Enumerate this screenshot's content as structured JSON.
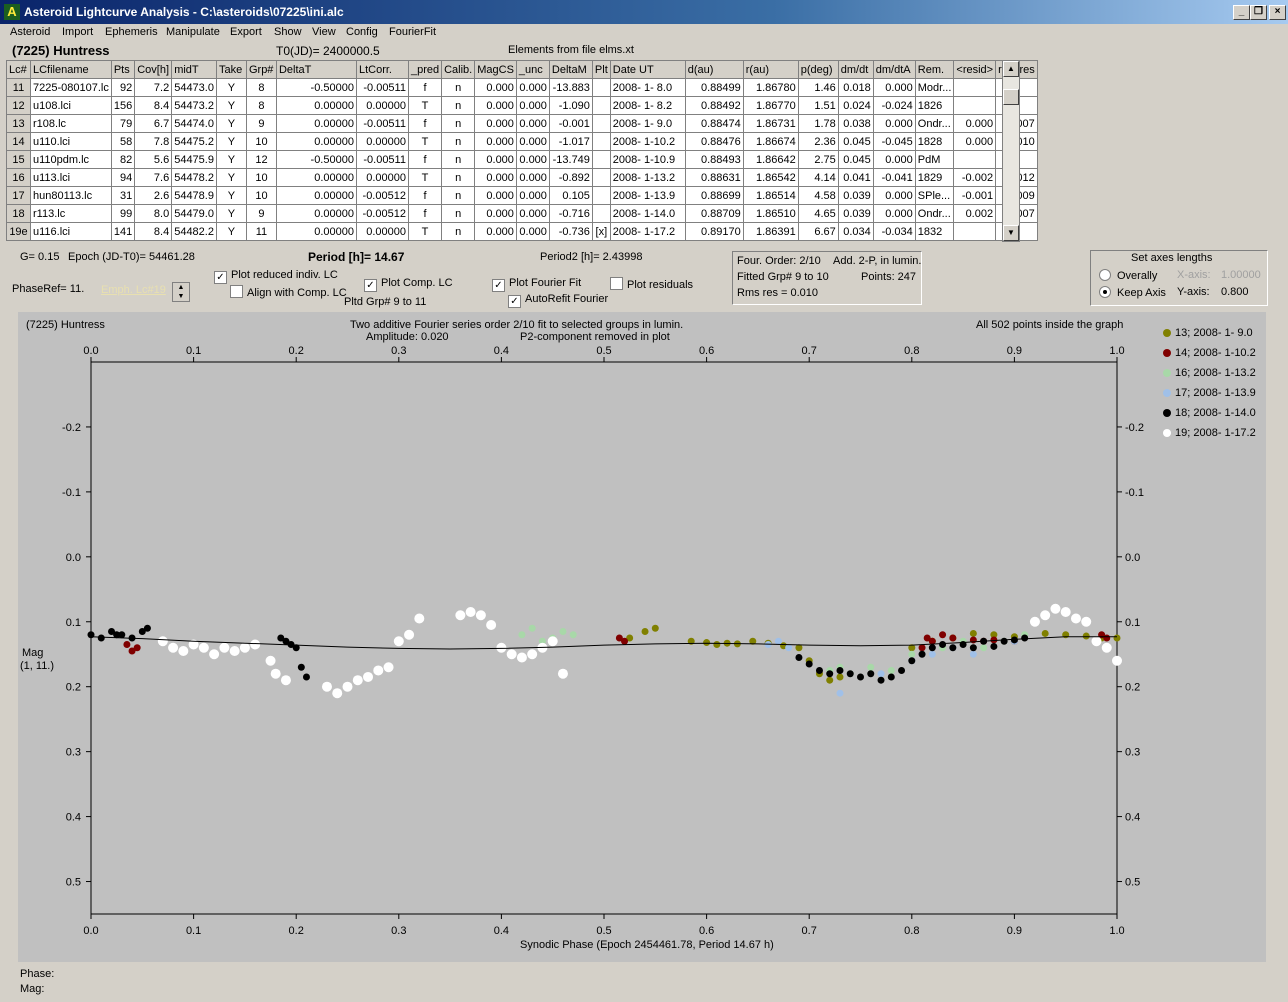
{
  "window": {
    "title": "Asteroid Lightcurve Analysis - C:\\asteroids\\07225\\ini.alc",
    "app_icon": "A"
  },
  "menu": [
    "Asteroid",
    "Import",
    "Ephemeris",
    "Manipulate",
    "Export",
    "Show",
    "View",
    "Config",
    "FourierFit"
  ],
  "header": {
    "asteroid": "(7225) Huntress",
    "t0": "T0(JD)= 2400000.5",
    "elements": "Elements from file elms.xt"
  },
  "table": {
    "columns": [
      "Lc#",
      "LCfilename",
      "Pts",
      "Cov[h]",
      "midT",
      "Take",
      "Grp#",
      "DeltaT",
      "LtCorr.",
      "_pred",
      "Calib.",
      "MagCS",
      "_unc",
      "DeltaM",
      "Plt",
      "Date UT",
      "d(au)",
      "r(au)",
      "p(deg)",
      "dm/dt",
      "dm/dtA",
      "Rem.",
      "<resid>",
      "rms res"
    ],
    "rows": [
      [
        "11",
        "7225-080107.lc",
        "92",
        "7.2",
        "54473.0",
        "Y",
        "8",
        "-0.50000",
        "-0.00511",
        "f",
        "n",
        "0.000",
        "0.000",
        "-13.883",
        "",
        "2008- 1- 8.0",
        "0.88499",
        "1.86780",
        "1.46",
        "0.018",
        "0.000",
        "Modr...",
        "",
        ""
      ],
      [
        "12",
        "u108.lci",
        "156",
        "8.4",
        "54473.2",
        "Y",
        "8",
        "0.00000",
        "0.00000",
        "T",
        "n",
        "0.000",
        "0.000",
        "-1.090",
        "",
        "2008- 1- 8.2",
        "0.88492",
        "1.86770",
        "1.51",
        "0.024",
        "-0.024",
        "1826",
        "",
        ""
      ],
      [
        "13",
        "r108.lc",
        "79",
        "6.7",
        "54474.0",
        "Y",
        "9",
        "0.00000",
        "-0.00511",
        "f",
        "n",
        "0.000",
        "0.000",
        "-0.001",
        "",
        "2008- 1- 9.0",
        "0.88474",
        "1.86731",
        "1.78",
        "0.038",
        "0.000",
        "Ondr...",
        "0.000",
        "0.007"
      ],
      [
        "14",
        "u110.lci",
        "58",
        "7.8",
        "54475.2",
        "Y",
        "10",
        "0.00000",
        "0.00000",
        "T",
        "n",
        "0.000",
        "0.000",
        "-1.017",
        "",
        "2008- 1-10.2",
        "0.88476",
        "1.86674",
        "2.36",
        "0.045",
        "-0.045",
        "1828",
        "0.000",
        "0.010"
      ],
      [
        "15",
        "u110pdm.lc",
        "82",
        "5.6",
        "54475.9",
        "Y",
        "12",
        "-0.50000",
        "-0.00511",
        "f",
        "n",
        "0.000",
        "0.000",
        "-13.749",
        "",
        "2008- 1-10.9",
        "0.88493",
        "1.86642",
        "2.75",
        "0.045",
        "0.000",
        "PdM",
        "",
        ""
      ],
      [
        "16",
        "u113.lci",
        "94",
        "7.6",
        "54478.2",
        "Y",
        "10",
        "0.00000",
        "0.00000",
        "T",
        "n",
        "0.000",
        "0.000",
        "-0.892",
        "",
        "2008- 1-13.2",
        "0.88631",
        "1.86542",
        "4.14",
        "0.041",
        "-0.041",
        "1829",
        "-0.002",
        "0.012"
      ],
      [
        "17",
        "hun80113.lc",
        "31",
        "2.6",
        "54478.9",
        "Y",
        "10",
        "0.00000",
        "-0.00512",
        "f",
        "n",
        "0.000",
        "0.000",
        "0.105",
        "",
        "2008- 1-13.9",
        "0.88699",
        "1.86514",
        "4.58",
        "0.039",
        "0.000",
        "SPle...",
        "-0.001",
        "0.009"
      ],
      [
        "18",
        "r113.lc",
        "99",
        "8.0",
        "54479.0",
        "Y",
        "9",
        "0.00000",
        "-0.00512",
        "f",
        "n",
        "0.000",
        "0.000",
        "-0.716",
        "",
        "2008- 1-14.0",
        "0.88709",
        "1.86510",
        "4.65",
        "0.039",
        "0.000",
        "Ondr...",
        "0.002",
        "0.007"
      ],
      [
        "19e",
        "u116.lci",
        "141",
        "8.4",
        "54482.2",
        "Y",
        "11",
        "0.00000",
        "0.00000",
        "T",
        "n",
        "0.000",
        "0.000",
        "-0.736",
        "[x]",
        "2008- 1-17.2",
        "0.89170",
        "1.86391",
        "6.67",
        "0.034",
        "-0.034",
        "1832",
        "",
        ""
      ]
    ]
  },
  "controls": {
    "g": "G= 0.15",
    "epoch": "Epoch (JD-T0)= 54461.28",
    "period": "Period [h]= 14.67",
    "period2": "Period2 [h]= 2.43998",
    "phaseref": "PhaseRef= 11.",
    "emph": "Emph. Lc#19",
    "plot_reduced": "Plot reduced indiv. LC",
    "align": "Align with Comp. LC",
    "plot_comp": "Plot Comp. LC",
    "pltd_grp": "Pltd Grp#  9  to   11",
    "plot_fourier": "Plot Fourier Fit",
    "autorefit": "AutoRefit Fourier",
    "plot_resid": "Plot residuals",
    "four_order": "Four. Order:  2/10",
    "add": "Add. 2-P, in lumin.",
    "fitted": "Fitted Grp# 9 to 10",
    "points": "Points: 247",
    "rms": "Rms res      = 0.010",
    "axes_title": "Set axes lengths",
    "overally": "Overally",
    "keepaxis": "Keep Axis",
    "xaxis_label": "X-axis:",
    "xaxis_val": "1.00000",
    "yaxis_label": "Y-axis:",
    "yaxis_val": "0.800"
  },
  "graph_text": {
    "name": "(7225) Huntress",
    "line1": "Two additive Fourier series order 2/10 fit to selected groups in lumin.",
    "line2": "Amplitude: 0.020",
    "line3": "P2-component removed in plot",
    "inside": "All 502 points inside the graph",
    "ylabel1": "Mag",
    "ylabel2": "(1, 11.)"
  },
  "status": {
    "phase": "Phase:",
    "mag": "Mag:"
  },
  "chart_data": {
    "type": "scatter",
    "xlabel": "Synodic Phase (Epoch 2454461.78, Period 14.67 h)",
    "ylabel": "Mag",
    "xlim": [
      0.0,
      1.0
    ],
    "ylim": [
      -0.3,
      0.55
    ],
    "y_inverted": true,
    "xticks": [
      "0.0",
      "0.1",
      "0.2",
      "0.3",
      "0.4",
      "0.5",
      "0.6",
      "0.7",
      "0.8",
      "0.9",
      "1.0"
    ],
    "yticks": [
      "-0.2",
      "-0.1",
      "0.0",
      "0.1",
      "0.2",
      "0.3",
      "0.4",
      "0.5"
    ],
    "legend_position": "right",
    "fit_curve": {
      "x": [
        0,
        0.05,
        0.1,
        0.15,
        0.2,
        0.25,
        0.3,
        0.35,
        0.4,
        0.45,
        0.5,
        0.55,
        0.6,
        0.65,
        0.7,
        0.75,
        0.8,
        0.85,
        0.9,
        0.95,
        1.0
      ],
      "y": [
        0.123,
        0.126,
        0.13,
        0.133,
        0.136,
        0.139,
        0.141,
        0.142,
        0.141,
        0.139,
        0.136,
        0.134,
        0.133,
        0.134,
        0.136,
        0.137,
        0.136,
        0.132,
        0.127,
        0.123,
        0.123
      ]
    },
    "series": [
      {
        "name": "13; 2008- 1- 9.0",
        "color": "#808000",
        "points": [
          [
            0.525,
            0.125
          ],
          [
            0.54,
            0.115
          ],
          [
            0.55,
            0.11
          ],
          [
            0.585,
            0.13
          ],
          [
            0.6,
            0.132
          ],
          [
            0.61,
            0.135
          ],
          [
            0.62,
            0.133
          ],
          [
            0.63,
            0.134
          ],
          [
            0.645,
            0.13
          ],
          [
            0.66,
            0.133
          ],
          [
            0.675,
            0.137
          ],
          [
            0.69,
            0.14
          ],
          [
            0.7,
            0.16
          ],
          [
            0.71,
            0.18
          ],
          [
            0.72,
            0.19
          ],
          [
            0.73,
            0.185
          ],
          [
            0.8,
            0.14
          ],
          [
            0.82,
            0.13
          ],
          [
            0.84,
            0.125
          ],
          [
            0.86,
            0.118
          ],
          [
            0.88,
            0.12
          ],
          [
            0.9,
            0.123
          ],
          [
            0.93,
            0.118
          ],
          [
            0.95,
            0.12
          ],
          [
            0.97,
            0.122
          ],
          [
            0.985,
            0.125
          ],
          [
            1.0,
            0.125
          ]
        ]
      },
      {
        "name": "14; 2008- 1-10.2",
        "color": "#800000",
        "points": [
          [
            0.035,
            0.135
          ],
          [
            0.04,
            0.145
          ],
          [
            0.045,
            0.14
          ],
          [
            0.515,
            0.125
          ],
          [
            0.52,
            0.13
          ],
          [
            0.81,
            0.14
          ],
          [
            0.815,
            0.125
          ],
          [
            0.82,
            0.13
          ],
          [
            0.83,
            0.12
          ],
          [
            0.84,
            0.125
          ],
          [
            0.86,
            0.128
          ],
          [
            0.87,
            0.13
          ],
          [
            0.88,
            0.128
          ],
          [
            0.9,
            0.13
          ],
          [
            0.985,
            0.12
          ],
          [
            0.99,
            0.125
          ]
        ]
      },
      {
        "name": "16; 2008- 1-13.2",
        "color": "#a8d8a8",
        "points": [
          [
            0.42,
            0.12
          ],
          [
            0.43,
            0.11
          ],
          [
            0.44,
            0.13
          ],
          [
            0.45,
            0.125
          ],
          [
            0.46,
            0.115
          ],
          [
            0.47,
            0.12
          ],
          [
            0.72,
            0.175
          ],
          [
            0.73,
            0.17
          ],
          [
            0.74,
            0.18
          ],
          [
            0.76,
            0.17
          ],
          [
            0.78,
            0.175
          ],
          [
            0.8,
            0.15
          ],
          [
            0.83,
            0.14
          ],
          [
            0.85,
            0.13
          ],
          [
            0.87,
            0.14
          ],
          [
            0.89,
            0.13
          ],
          [
            0.91,
            0.12
          ]
        ]
      },
      {
        "name": "17; 2008- 1-13.9",
        "color": "#a0c0e8",
        "points": [
          [
            0.66,
            0.135
          ],
          [
            0.67,
            0.13
          ],
          [
            0.68,
            0.14
          ],
          [
            0.73,
            0.21
          ],
          [
            0.77,
            0.18
          ],
          [
            0.8,
            0.16
          ],
          [
            0.82,
            0.15
          ],
          [
            0.84,
            0.14
          ],
          [
            0.86,
            0.15
          ],
          [
            0.9,
            0.13
          ]
        ]
      },
      {
        "name": "18; 2008- 1-14.0",
        "color": "#000000",
        "points": [
          [
            0.0,
            0.12
          ],
          [
            0.01,
            0.125
          ],
          [
            0.02,
            0.115
          ],
          [
            0.025,
            0.12
          ],
          [
            0.03,
            0.12
          ],
          [
            0.04,
            0.125
          ],
          [
            0.05,
            0.115
          ],
          [
            0.055,
            0.11
          ],
          [
            0.185,
            0.125
          ],
          [
            0.19,
            0.13
          ],
          [
            0.195,
            0.135
          ],
          [
            0.2,
            0.14
          ],
          [
            0.205,
            0.17
          ],
          [
            0.21,
            0.185
          ],
          [
            0.69,
            0.155
          ],
          [
            0.7,
            0.165
          ],
          [
            0.71,
            0.175
          ],
          [
            0.72,
            0.18
          ],
          [
            0.73,
            0.175
          ],
          [
            0.74,
            0.18
          ],
          [
            0.75,
            0.185
          ],
          [
            0.76,
            0.18
          ],
          [
            0.77,
            0.19
          ],
          [
            0.78,
            0.185
          ],
          [
            0.79,
            0.175
          ],
          [
            0.8,
            0.16
          ],
          [
            0.81,
            0.15
          ],
          [
            0.82,
            0.14
          ],
          [
            0.83,
            0.135
          ],
          [
            0.84,
            0.14
          ],
          [
            0.85,
            0.135
          ],
          [
            0.86,
            0.14
          ],
          [
            0.87,
            0.13
          ],
          [
            0.88,
            0.138
          ],
          [
            0.89,
            0.13
          ],
          [
            0.9,
            0.128
          ],
          [
            0.91,
            0.125
          ]
        ]
      },
      {
        "name": "19; 2008- 1-17.2",
        "color": "#ffffff",
        "points": [
          [
            0.07,
            0.13
          ],
          [
            0.08,
            0.14
          ],
          [
            0.09,
            0.145
          ],
          [
            0.1,
            0.135
          ],
          [
            0.11,
            0.14
          ],
          [
            0.12,
            0.15
          ],
          [
            0.13,
            0.14
          ],
          [
            0.14,
            0.145
          ],
          [
            0.15,
            0.14
          ],
          [
            0.16,
            0.135
          ],
          [
            0.175,
            0.16
          ],
          [
            0.18,
            0.18
          ],
          [
            0.19,
            0.19
          ],
          [
            0.23,
            0.2
          ],
          [
            0.24,
            0.21
          ],
          [
            0.25,
            0.2
          ],
          [
            0.26,
            0.19
          ],
          [
            0.27,
            0.185
          ],
          [
            0.28,
            0.175
          ],
          [
            0.29,
            0.17
          ],
          [
            0.3,
            0.13
          ],
          [
            0.31,
            0.12
          ],
          [
            0.32,
            0.095
          ],
          [
            0.36,
            0.09
          ],
          [
            0.37,
            0.085
          ],
          [
            0.38,
            0.09
          ],
          [
            0.39,
            0.105
          ],
          [
            0.4,
            0.14
          ],
          [
            0.41,
            0.15
          ],
          [
            0.42,
            0.155
          ],
          [
            0.43,
            0.15
          ],
          [
            0.44,
            0.14
          ],
          [
            0.45,
            0.13
          ],
          [
            0.46,
            0.18
          ],
          [
            0.92,
            0.1
          ],
          [
            0.93,
            0.09
          ],
          [
            0.94,
            0.08
          ],
          [
            0.95,
            0.085
          ],
          [
            0.96,
            0.095
          ],
          [
            0.97,
            0.1
          ],
          [
            0.98,
            0.13
          ],
          [
            0.99,
            0.14
          ],
          [
            1.0,
            0.16
          ]
        ]
      }
    ]
  }
}
